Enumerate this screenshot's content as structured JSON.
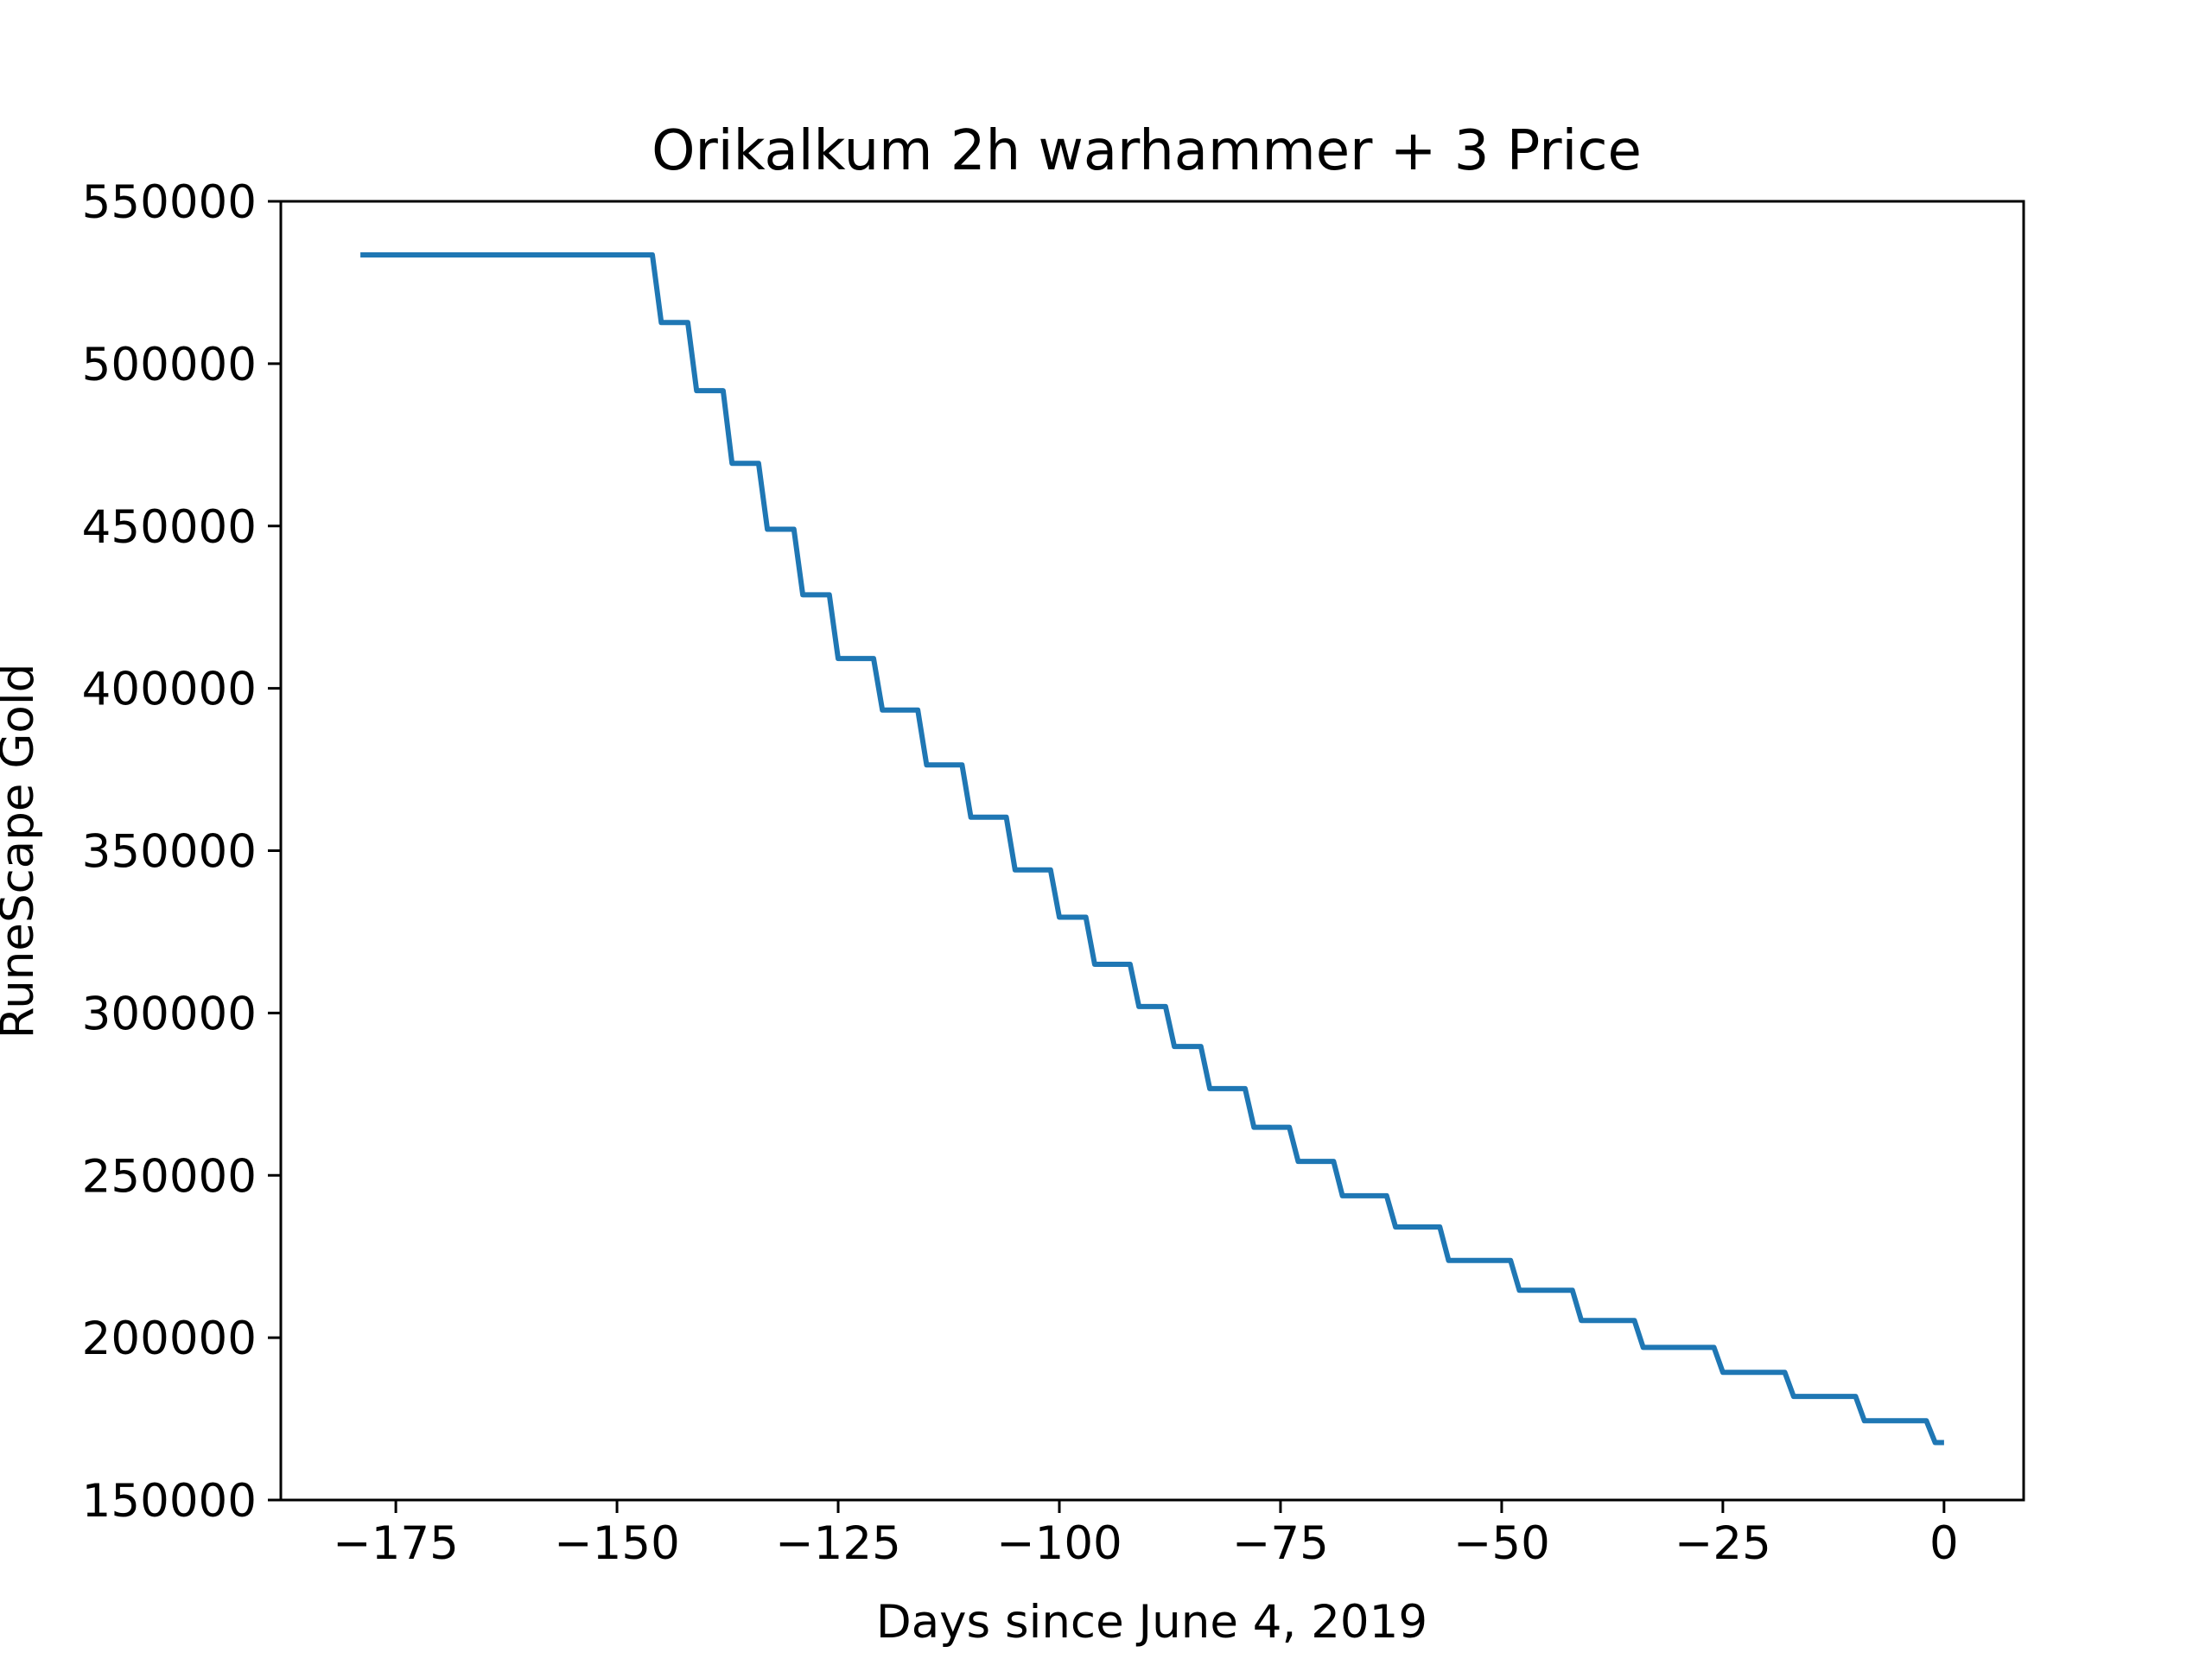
{
  "chart_data": {
    "type": "line",
    "title": "Orikalkum 2h warhammer + 3 Price",
    "xlabel": "Days since June 4, 2019",
    "ylabel": "RuneScape Gold",
    "xlim": [
      -188,
      9
    ],
    "ylim": [
      150000,
      550000
    ],
    "xticks": [
      -175,
      -150,
      -125,
      -100,
      -75,
      -50,
      -25,
      0
    ],
    "xtick_labels": [
      "−175",
      "−150",
      "−125",
      "−100",
      "−75",
      "−50",
      "−25",
      "0"
    ],
    "yticks": [
      150000,
      200000,
      250000,
      300000,
      350000,
      400000,
      450000,
      500000,
      550000
    ],
    "ytick_labels": [
      "150000",
      "200000",
      "250000",
      "300000",
      "350000",
      "400000",
      "450000",
      "500000",
      "550000"
    ],
    "grid": false,
    "line_color": "#1f77b4",
    "series": [
      {
        "x": [
          -179,
          -146,
          -145,
          -142,
          -141,
          -138,
          -137,
          -134,
          -133,
          -130,
          -129,
          -126,
          -125,
          -121,
          -120,
          -116,
          -115,
          -111,
          -110,
          -106,
          -105,
          -101,
          -100,
          -97,
          -96,
          -92,
          -91,
          -88,
          -87,
          -84,
          -83,
          -79,
          -78,
          -74,
          -73,
          -69,
          -68,
          -63,
          -62,
          -57,
          -56,
          -49,
          -48,
          -42,
          -41,
          -35,
          -34,
          -26,
          -25,
          -18,
          -17,
          -10,
          -9,
          -2,
          -1,
          0
        ],
        "y": [
          533500,
          533500,
          512700,
          512700,
          491700,
          491700,
          469300,
          469300,
          449000,
          449000,
          428800,
          428800,
          409200,
          409200,
          393300,
          393300,
          376400,
          376400,
          360300,
          360300,
          344100,
          344100,
          329500,
          329500,
          315000,
          315000,
          302000,
          302000,
          289700,
          289700,
          276700,
          276700,
          264800,
          264800,
          254300,
          254300,
          243700,
          243700,
          234100,
          234100,
          223800,
          223800,
          214600,
          214600,
          205300,
          205300,
          197000,
          197000,
          189300,
          189300,
          181900,
          181900,
          174400,
          174400,
          167700,
          167700
        ]
      }
    ]
  }
}
